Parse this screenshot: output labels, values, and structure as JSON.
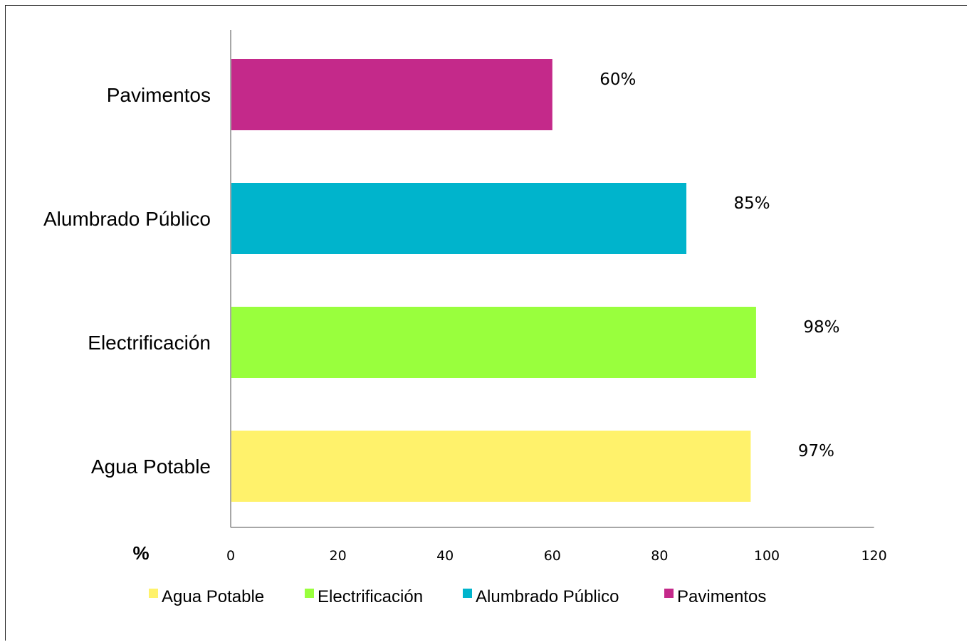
{
  "chart_data": {
    "type": "bar",
    "orientation": "horizontal",
    "categories": [
      "Agua Potable",
      "Electrificación",
      "Alumbrado Público",
      "Pavimentos"
    ],
    "values": [
      97,
      98,
      85,
      60
    ],
    "data_labels": [
      "97%",
      "98%",
      "85%",
      "60%"
    ],
    "colors": [
      "#FFF26B",
      "#99FF3D",
      "#00B4CC",
      "#C4298A"
    ],
    "xlabel": "%",
    "xlim": [
      0,
      120
    ],
    "x_ticks": [
      "0",
      "20",
      "40",
      "60",
      "80",
      "100",
      "120"
    ],
    "grid": false,
    "legend": {
      "placement": "bottom",
      "entries": [
        "Agua Potable",
        "Electrificación",
        "Alumbrado Público",
        "Pavimentos"
      ]
    }
  }
}
